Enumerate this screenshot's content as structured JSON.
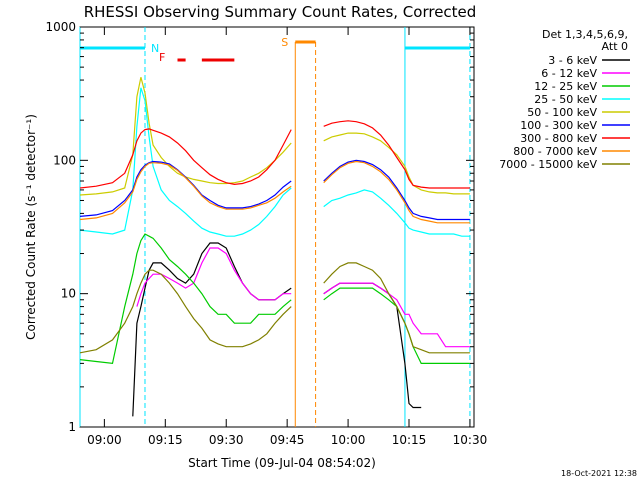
{
  "chart_data": {
    "type": "line",
    "title": "RHESSI Observing Summary Count Rates, Corrected",
    "xlabel": "Start Time (09-Jul-04 08:54:02)",
    "ylabel": "Corrected Count Rate (s⁻¹ detector⁻¹)",
    "y_scale": "log",
    "ylim": [
      1,
      1000
    ],
    "xlim": [
      "08:54",
      "10:31"
    ],
    "x_ticks": [
      "09:00",
      "09:15",
      "09:30",
      "09:45",
      "10:00",
      "10:15",
      "10:30"
    ],
    "y_ticks": [
      "1",
      "10",
      "100",
      "1000"
    ],
    "legend_header": [
      "Det 1,3,4,5,6,9,",
      "Att 0"
    ],
    "legend_position": "right",
    "x": [
      "08:54",
      "08:58",
      "09:02",
      "09:05",
      "09:07",
      "09:08",
      "09:09",
      "09:10",
      "09:11",
      "09:12",
      "09:14",
      "09:16",
      "09:18",
      "09:20",
      "09:22",
      "09:24",
      "09:26",
      "09:28",
      "09:30",
      "09:32",
      "09:34",
      "09:36",
      "09:38",
      "09:40",
      "09:42",
      "09:44",
      "09:46",
      "09:52",
      "09:54",
      "09:56",
      "09:58",
      "10:00",
      "10:02",
      "10:04",
      "10:06",
      "10:08",
      "10:10",
      "10:12",
      "10:14",
      "10:15",
      "10:16",
      "10:18",
      "10:20",
      "10:22",
      "10:24",
      "10:26",
      "10:28",
      "10:30"
    ],
    "series": [
      {
        "name": "3 - 6 keV",
        "color": "#000000",
        "values": [
          null,
          null,
          null,
          null,
          1.2,
          6,
          8,
          11,
          15,
          17,
          17,
          15,
          13,
          12,
          14,
          20,
          24,
          24,
          22,
          16,
          12,
          10,
          9,
          9,
          9,
          10,
          11,
          null,
          10,
          11,
          12,
          12,
          12,
          12,
          12,
          11,
          10,
          8,
          3,
          1.5,
          1.4,
          1.4,
          null,
          null,
          null,
          null,
          null,
          null
        ]
      },
      {
        "name": "6 - 12 keV",
        "color": "#ff00ff",
        "values": [
          null,
          null,
          null,
          null,
          null,
          8,
          10,
          12,
          13,
          14,
          14,
          13,
          12,
          11,
          12,
          17,
          22,
          22,
          20,
          15,
          12,
          10,
          9,
          9,
          9,
          10,
          10,
          null,
          10,
          11,
          12,
          12,
          12,
          12,
          12,
          11,
          10,
          9,
          7,
          7,
          6,
          5,
          5,
          5,
          4,
          4,
          4,
          4
        ]
      },
      {
        "name": "12 - 25 keV",
        "color": "#00cc00",
        "values": [
          3.2,
          3.1,
          3.0,
          8,
          14,
          20,
          25,
          28,
          27,
          26,
          22,
          18,
          16,
          14,
          12,
          10,
          8,
          7,
          7,
          6,
          6,
          6,
          7,
          7,
          7,
          8,
          9,
          null,
          9,
          10,
          11,
          11,
          11,
          11,
          11,
          10,
          9,
          8,
          6,
          5,
          4,
          3,
          3,
          3,
          3,
          3,
          3,
          3
        ]
      },
      {
        "name": "25 - 50 keV",
        "color": "#00ffff",
        "values": [
          30,
          29,
          28,
          30,
          60,
          180,
          350,
          280,
          150,
          90,
          60,
          50,
          45,
          40,
          35,
          31,
          29,
          28,
          27,
          27,
          28,
          30,
          33,
          38,
          45,
          55,
          62,
          null,
          45,
          50,
          52,
          55,
          57,
          60,
          58,
          52,
          46,
          40,
          34,
          31,
          30,
          29,
          28,
          28,
          28,
          28,
          27,
          27
        ]
      },
      {
        "name": "50 - 100 keV",
        "color": "#cccc00",
        "values": [
          55,
          56,
          58,
          62,
          110,
          300,
          420,
          320,
          190,
          130,
          105,
          90,
          80,
          75,
          72,
          70,
          68,
          67,
          67,
          68,
          70,
          75,
          80,
          88,
          100,
          115,
          135,
          null,
          140,
          150,
          155,
          160,
          160,
          158,
          150,
          140,
          125,
          110,
          90,
          75,
          65,
          60,
          58,
          57,
          57,
          56,
          56,
          56
        ]
      },
      {
        "name": "100 - 300 keV",
        "color": "#0000ff",
        "values": [
          38,
          39,
          42,
          50,
          60,
          75,
          85,
          92,
          96,
          98,
          97,
          94,
          85,
          75,
          65,
          55,
          50,
          46,
          44,
          44,
          44,
          45,
          47,
          50,
          55,
          63,
          70,
          null,
          70,
          80,
          90,
          97,
          100,
          98,
          93,
          85,
          75,
          62,
          50,
          44,
          40,
          38,
          37,
          36,
          36,
          36,
          36,
          36
        ]
      },
      {
        "name": "300 - 800 keV",
        "color": "#ff0000",
        "values": [
          62,
          64,
          68,
          80,
          110,
          140,
          160,
          170,
          172,
          168,
          160,
          150,
          135,
          118,
          100,
          88,
          78,
          72,
          68,
          66,
          67,
          70,
          75,
          85,
          100,
          130,
          170,
          null,
          180,
          190,
          195,
          198,
          195,
          188,
          175,
          155,
          130,
          105,
          85,
          72,
          65,
          63,
          62,
          62,
          62,
          62,
          62,
          62
        ]
      },
      {
        "name": "800 - 7000 keV",
        "color": "#ff8800",
        "values": [
          36,
          37,
          40,
          48,
          58,
          72,
          82,
          90,
          95,
          96,
          95,
          92,
          84,
          74,
          64,
          54,
          48,
          45,
          43,
          43,
          43,
          44,
          46,
          48,
          52,
          58,
          64,
          null,
          68,
          78,
          88,
          95,
          98,
          96,
          90,
          82,
          72,
          60,
          48,
          42,
          38,
          36,
          35,
          34,
          34,
          34,
          34,
          34
        ]
      },
      {
        "name": "7000 - 15000 keV",
        "color": "#808000",
        "values": [
          3.6,
          3.8,
          4.5,
          6,
          8,
          10,
          12,
          14,
          15,
          15,
          14,
          12,
          10,
          8,
          6.5,
          5.5,
          4.5,
          4.2,
          4.0,
          4.0,
          4.0,
          4.2,
          4.5,
          5,
          6,
          7,
          8,
          null,
          12,
          14,
          16,
          17,
          17,
          16,
          15,
          13,
          10,
          8,
          6,
          5,
          4,
          3.8,
          3.6,
          3.6,
          3.6,
          3.6,
          3.6,
          3.6
        ]
      }
    ],
    "annotations": {
      "night_label": "N",
      "flare_label": "F",
      "saa_label": "S"
    },
    "timestamp": "18-Oct-2021 12:38"
  }
}
